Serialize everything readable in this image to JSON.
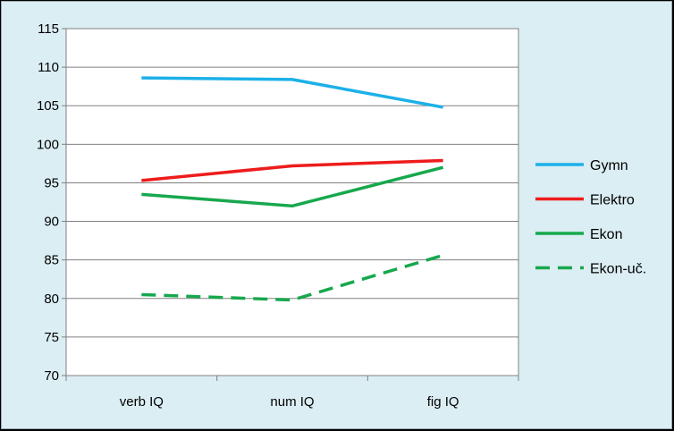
{
  "chart_data": {
    "type": "line",
    "categories": [
      "verb IQ",
      "num IQ",
      "fig IQ"
    ],
    "ylim": [
      70,
      115
    ],
    "yticks": [
      70,
      75,
      80,
      85,
      90,
      95,
      100,
      105,
      110,
      115
    ],
    "grid": true,
    "legend_position": "right",
    "series": [
      {
        "name": "Gymn",
        "values": [
          108.6,
          108.4,
          104.8
        ],
        "color": "#1cb0e8",
        "dash": false
      },
      {
        "name": "Elektro",
        "values": [
          95.3,
          97.2,
          97.9
        ],
        "color": "#ee1c1c",
        "dash": false
      },
      {
        "name": "Ekon",
        "values": [
          93.5,
          92.0,
          97.0
        ],
        "color": "#17a84d",
        "dash": false
      },
      {
        "name": "Ekon-uč.",
        "values": [
          80.5,
          79.8,
          85.6
        ],
        "color": "#17a84d",
        "dash": true
      }
    ],
    "plot_background": "#ffffff",
    "chart_background": "#dbeef4"
  }
}
